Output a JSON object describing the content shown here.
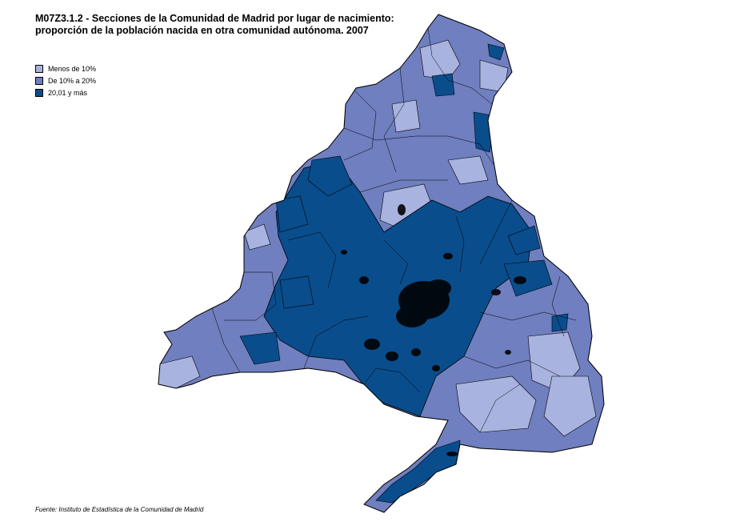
{
  "title": {
    "line1": "M07Z3.1.2 - Secciones de la Comunidad de Madrid por lugar de nacimiento:",
    "line2": "proporción de la población nacida en otra comunidad autónoma. 2007"
  },
  "legend": [
    {
      "label": "Menos de 10%",
      "color": "#a9b3df"
    },
    {
      "label": "De 10% a 20%",
      "color": "#6f7fbf"
    },
    {
      "label": "20,01 y más",
      "color": "#0a4d8c"
    }
  ],
  "source": "Fuente: Instituto de Estadística de la Comunidad de Madrid"
}
